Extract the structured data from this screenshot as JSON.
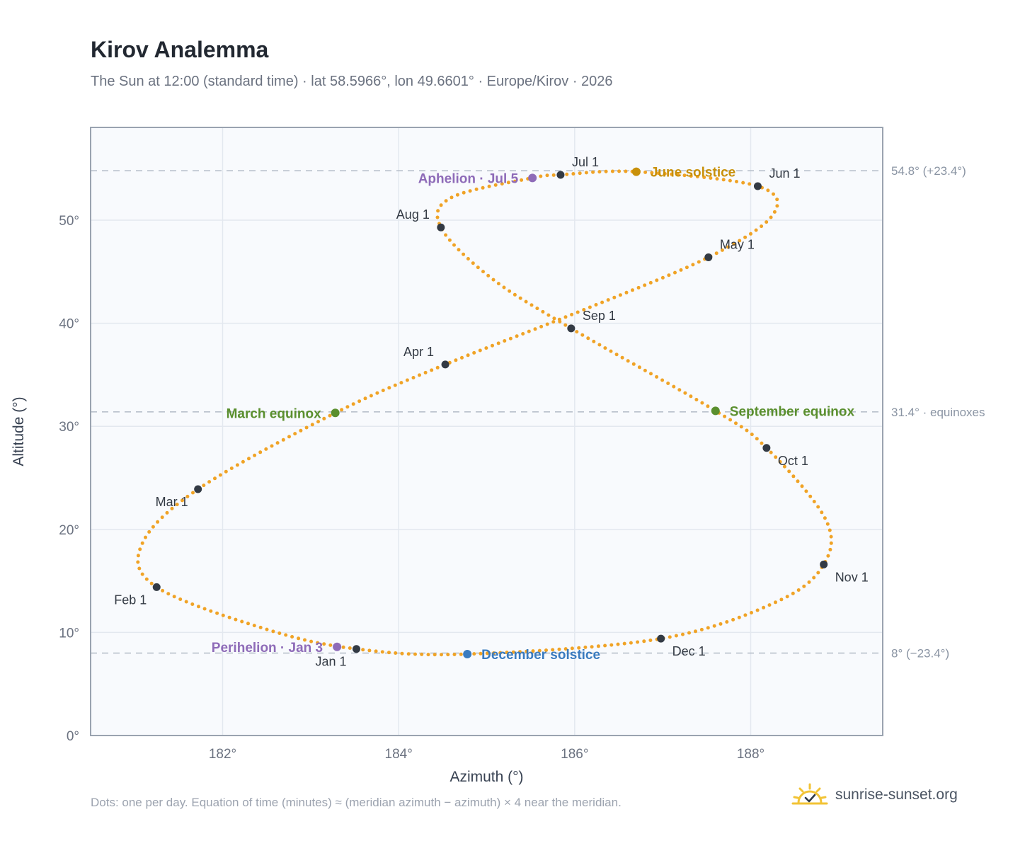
{
  "header": {
    "title": "Kirov Analemma",
    "subtitle": "The Sun at 12:00 (standard time) · lat 58.5966°, lon 49.6601° · Europe/Kirov · 2026"
  },
  "footer": {
    "note": "Dots: one per day. Equation of time (minutes) ≈ (meridian azimuth − azimuth) × 4 near the meridian.",
    "brand": "sunrise-sunset.org"
  },
  "colors": {
    "curve": "#f0a326",
    "month_marker": "#333a44",
    "march_equinox": "#5a8f2e",
    "september_equinox": "#5a8f2e",
    "june_solstice": "#c8900a",
    "december_solstice": "#3a7bbf",
    "aphelion": "#8e6bb8",
    "perihelion": "#8e6bb8",
    "plot_background": "#f8fafd",
    "grid": "#e3e8ef",
    "frame": "#9aa3b0",
    "reference_line": "#b8c0cb"
  },
  "chart_data": {
    "type": "scatter",
    "title": "Kirov Analemma",
    "xlabel": "Azimuth (°)",
    "ylabel": "Altitude (°)",
    "xlim": [
      180.5,
      189.5
    ],
    "ylim": [
      0,
      59
    ],
    "x_ticks": [
      182,
      184,
      186,
      188
    ],
    "x_tick_labels": [
      "182°",
      "184°",
      "186°",
      "188°"
    ],
    "y_ticks": [
      0,
      10,
      20,
      30,
      40,
      50
    ],
    "y_tick_labels": [
      "0°",
      "10°",
      "20°",
      "30°",
      "40°",
      "50°"
    ],
    "grid": true,
    "series": [
      {
        "points_per": "day",
        "path": [
          {
            "x": 183.52,
            "y": 8.4
          },
          {
            "x": 182.5,
            "y": 10.3
          },
          {
            "x": 181.25,
            "y": 14.4
          },
          {
            "x": 181.08,
            "y": 18.5
          },
          {
            "x": 181.72,
            "y": 23.9
          },
          {
            "x": 183.28,
            "y": 31.3
          },
          {
            "x": 184.53,
            "y": 36.0
          },
          {
            "x": 186.1,
            "y": 41.3
          },
          {
            "x": 187.52,
            "y": 46.4
          },
          {
            "x": 188.25,
            "y": 50.5
          },
          {
            "x": 188.08,
            "y": 53.3
          },
          {
            "x": 186.7,
            "y": 54.7
          },
          {
            "x": 185.84,
            "y": 54.4
          },
          {
            "x": 185.52,
            "y": 54.1
          },
          {
            "x": 184.6,
            "y": 52.2
          },
          {
            "x": 184.48,
            "y": 49.3
          },
          {
            "x": 185.05,
            "y": 44.4
          },
          {
            "x": 185.96,
            "y": 39.5
          },
          {
            "x": 187.6,
            "y": 31.5
          },
          {
            "x": 188.18,
            "y": 27.9
          },
          {
            "x": 188.85,
            "y": 21.0
          },
          {
            "x": 188.83,
            "y": 16.6
          },
          {
            "x": 188.3,
            "y": 13.0
          },
          {
            "x": 186.98,
            "y": 9.4
          },
          {
            "x": 184.78,
            "y": 7.9
          },
          {
            "x": 183.52,
            "y": 8.4
          }
        ]
      }
    ],
    "month_markers": [
      {
        "label": "Jan 1",
        "x": 183.52,
        "y": 8.4,
        "label_pos": "below-left"
      },
      {
        "label": "Feb 1",
        "x": 181.25,
        "y": 14.4,
        "label_pos": "below-left"
      },
      {
        "label": "Mar 1",
        "x": 181.72,
        "y": 23.9,
        "label_pos": "below-left"
      },
      {
        "label": "Apr 1",
        "x": 184.53,
        "y": 36.0,
        "label_pos": "above-left"
      },
      {
        "label": "May 1",
        "x": 187.52,
        "y": 46.4,
        "label_pos": "above-right"
      },
      {
        "label": "Jun 1",
        "x": 188.08,
        "y": 53.3,
        "label_pos": "above-right"
      },
      {
        "label": "Jul 1",
        "x": 185.84,
        "y": 54.4,
        "label_pos": "above-right"
      },
      {
        "label": "Aug 1",
        "x": 184.48,
        "y": 49.3,
        "label_pos": "above-left"
      },
      {
        "label": "Sep 1",
        "x": 185.96,
        "y": 39.5,
        "label_pos": "above-right"
      },
      {
        "label": "Oct 1",
        "x": 188.18,
        "y": 27.9,
        "label_pos": "below-right"
      },
      {
        "label": "Nov 1",
        "x": 188.83,
        "y": 16.6,
        "label_pos": "below-right"
      },
      {
        "label": "Dec 1",
        "x": 186.98,
        "y": 9.4,
        "label_pos": "below-right"
      }
    ],
    "events": [
      {
        "label": "March equinox",
        "x": 183.28,
        "y": 31.3,
        "color_key": "march_equinox",
        "label_pos": "left"
      },
      {
        "label": "September equinox",
        "x": 187.6,
        "y": 31.5,
        "color_key": "september_equinox",
        "label_pos": "right"
      },
      {
        "label": "June solstice",
        "x": 186.7,
        "y": 54.7,
        "color_key": "june_solstice",
        "label_pos": "right"
      },
      {
        "label": "December solstice",
        "x": 184.78,
        "y": 7.9,
        "color_key": "december_solstice",
        "label_pos": "right"
      },
      {
        "label": "Aphelion · Jul 5",
        "x": 185.52,
        "y": 54.1,
        "color_key": "aphelion",
        "label_pos": "left"
      },
      {
        "label": "Perihelion · Jan 3",
        "x": 183.3,
        "y": 8.6,
        "color_key": "perihelion",
        "label_pos": "left"
      }
    ],
    "reference_lines": [
      {
        "y": 54.8,
        "label": "54.8° (+23.4°)"
      },
      {
        "y": 31.4,
        "label": "31.4° · equinoxes"
      },
      {
        "y": 8.0,
        "label": "8° (−23.4°)"
      }
    ]
  }
}
